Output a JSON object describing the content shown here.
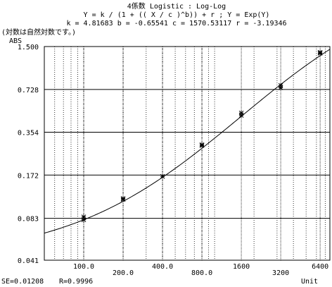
{
  "header": {
    "line1": "4係数 Logistic : Log-Log",
    "line2": "Y = k / (1 + (( X / c )^b)) + r  ;  Y = Exp(Y)",
    "line3": "k = 4.81683  b = -0.65541  c = 1570.53117  r = -3.19346",
    "note": "(対数は自然対数です。)"
  },
  "footer": {
    "se": "SE=0.01208",
    "r": "R=0.9996"
  },
  "chart_data": {
    "type": "scatter",
    "log_x": true,
    "log_y": true,
    "xlim": [
      50,
      7600
    ],
    "ylim": [
      0.041,
      1.5
    ],
    "xlabel": "Unit",
    "ylabel": "ABS",
    "x_tick_labels": [
      "100.0",
      "200.0",
      "400.0",
      "800.0",
      "1600",
      "3200",
      "6400"
    ],
    "x_tick_values": [
      100,
      200,
      400,
      800,
      1600,
      3200,
      6400
    ],
    "y_tick_labels": [
      "1.500",
      "0.728",
      "0.354",
      "0.172",
      "0.083",
      "0.041"
    ],
    "y_tick_values": [
      1.5,
      0.728,
      0.354,
      0.172,
      0.083,
      0.041
    ],
    "points": [
      {
        "x": 100,
        "y": 0.081
      },
      {
        "x": 100,
        "y": 0.085
      },
      {
        "x": 200,
        "y": 0.114
      },
      {
        "x": 200,
        "y": 0.116
      },
      {
        "x": 400,
        "y": 0.168
      },
      {
        "x": 800,
        "y": 0.283
      },
      {
        "x": 800,
        "y": 0.287
      },
      {
        "x": 1600,
        "y": 0.47
      },
      {
        "x": 1600,
        "y": 0.49
      },
      {
        "x": 3200,
        "y": 0.75
      },
      {
        "x": 3200,
        "y": 0.78
      },
      {
        "x": 6400,
        "y": 1.34
      },
      {
        "x": 6400,
        "y": 1.36
      }
    ],
    "fit": {
      "model": "4PL log-log",
      "k": 4.81683,
      "b": -0.65541,
      "c": 1570.53117,
      "r": -3.19346
    }
  }
}
